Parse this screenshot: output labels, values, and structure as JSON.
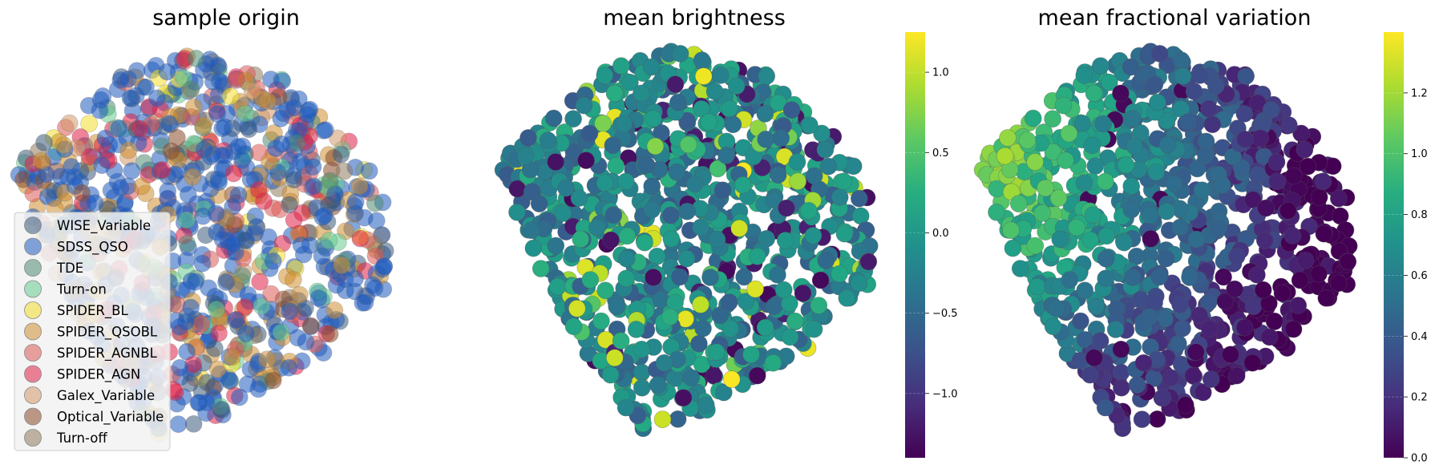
{
  "chart_data": [
    {
      "type": "scatter",
      "title": "sample origin",
      "xlabel": "",
      "ylabel": "",
      "axes_visible": false,
      "legend": {
        "placement": "lower-left",
        "entries": [
          {
            "name": "WISE_Variable",
            "color": "#3b5a7c"
          },
          {
            "name": "SDSS_QSO",
            "color": "#1f5bbf"
          },
          {
            "name": "TDE",
            "color": "#4f8a73"
          },
          {
            "name": "Turn-on",
            "color": "#66cc8f"
          },
          {
            "name": "SPIDER_BL",
            "color": "#f2de2a"
          },
          {
            "name": "SPIDER_QSOBL",
            "color": "#cf8e30"
          },
          {
            "name": "SPIDER_AGNBL",
            "color": "#dd5a55"
          },
          {
            "name": "SPIDER_AGN",
            "color": "#e01f45"
          },
          {
            "name": "Galex_Variable",
            "color": "#d2996a"
          },
          {
            "name": "Optical_Variable",
            "color": "#8b4a2a"
          },
          {
            "name": "Turn-off",
            "color": "#8f7a5e"
          }
        ]
      },
      "marker_alpha": 0.55
    },
    {
      "type": "scatter",
      "title": "mean brightness",
      "xlabel": "",
      "ylabel": "",
      "axes_visible": false,
      "colormap": "viridis",
      "colorbar": {
        "range": [
          -1.4,
          1.25
        ],
        "ticks": [
          1.0,
          0.5,
          0.0,
          -0.5,
          -1.0
        ],
        "tick_labels": [
          "1.0",
          "0.5",
          "0.0",
          "−0.5",
          "−1.0"
        ]
      }
    },
    {
      "type": "scatter",
      "title": "mean fractional variation",
      "xlabel": "",
      "ylabel": "",
      "axes_visible": false,
      "colormap": "viridis",
      "colorbar": {
        "range": [
          0.0,
          1.4
        ],
        "ticks": [
          1.2,
          1.0,
          0.8,
          0.6,
          0.4,
          0.2,
          0.0
        ],
        "tick_labels": [
          "1.2",
          "1.0",
          "0.8",
          "0.6",
          "0.4",
          "0.2",
          "0.0"
        ]
      }
    }
  ]
}
